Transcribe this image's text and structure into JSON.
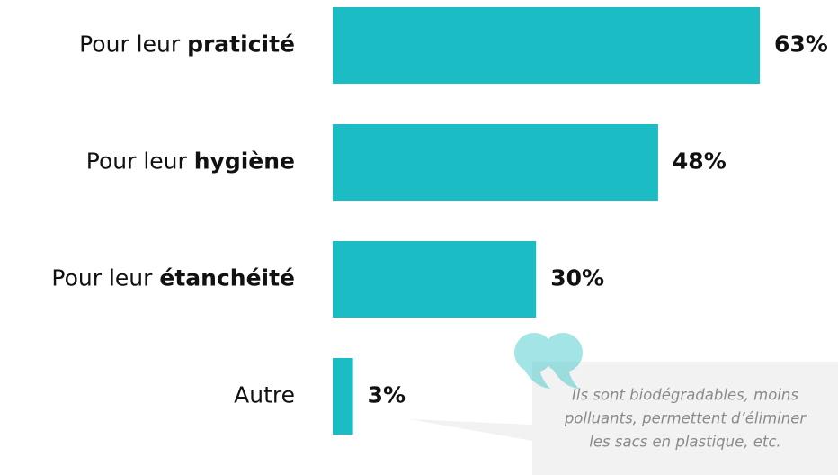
{
  "chart_data": {
    "type": "bar",
    "orientation": "horizontal",
    "categories": [
      "Pour leur praticité",
      "Pour leur hygiène",
      "Pour leur étanchéité",
      "Autre"
    ],
    "values": [
      63,
      48,
      30,
      3
    ],
    "value_labels": [
      "63%",
      "48%",
      "30%",
      "3%"
    ],
    "color": "#1bbcc4",
    "quote": [
      "Ils sont biodégradables, moins",
      "polluants, permettent d’éliminer",
      "les sacs en plastique, etc."
    ]
  }
}
